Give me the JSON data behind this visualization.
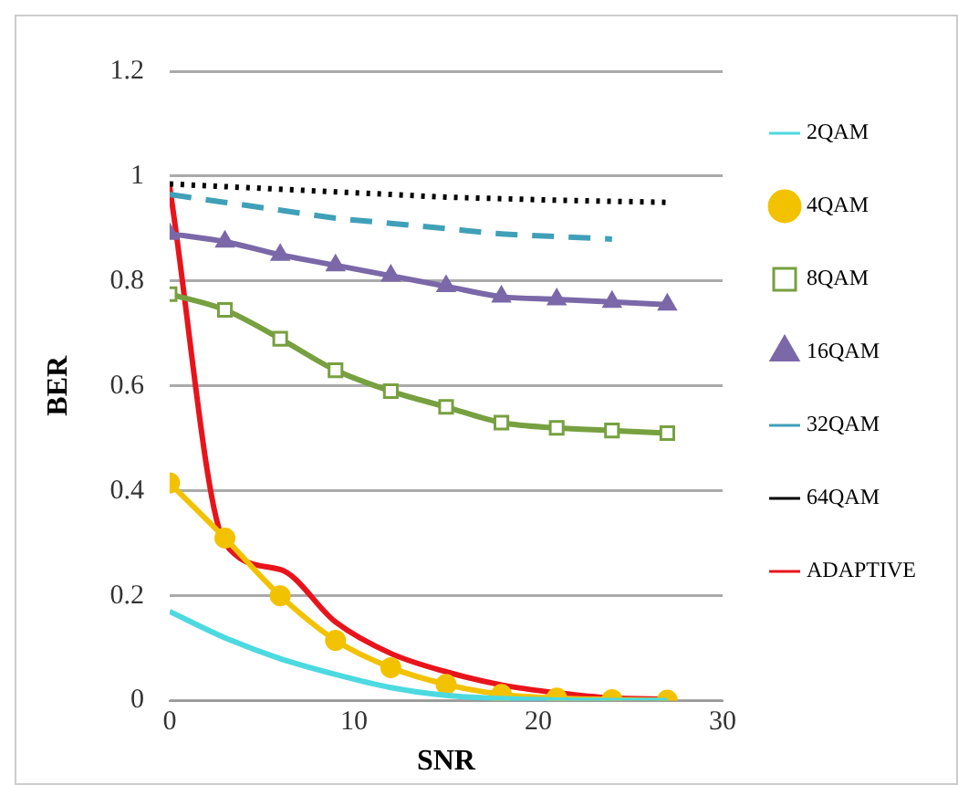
{
  "chart_data": {
    "type": "line",
    "xlabel": "SNR",
    "ylabel": "BER",
    "x": [
      0,
      3,
      6,
      9,
      12,
      15,
      18,
      21,
      24,
      27
    ],
    "xlim": [
      0,
      30
    ],
    "xticks": [
      0,
      10,
      20,
      30
    ],
    "ylim": [
      0,
      1.2
    ],
    "yticks": [
      0,
      0.2,
      0.4,
      0.6,
      0.8,
      1,
      1.2
    ],
    "grid": "y",
    "legend": "right",
    "series": [
      {
        "name": "2QAM",
        "color": "#4dd9e0",
        "marker": "none",
        "line_style": "solid",
        "values": [
          0.17,
          0.12,
          0.08,
          0.05,
          0.025,
          0.01,
          0.004,
          0.001,
          0,
          0
        ]
      },
      {
        "name": "4QAM",
        "color": "#f2c200",
        "marker": "circle",
        "line_style": "solid",
        "values": [
          0.415,
          0.31,
          0.2,
          0.115,
          0.063,
          0.031,
          0.012,
          0.005,
          0.002,
          0.001
        ]
      },
      {
        "name": "8QAM",
        "color": "#77a040",
        "marker": "square",
        "line_style": "solid",
        "values": [
          0.775,
          0.745,
          0.69,
          0.63,
          0.59,
          0.56,
          0.53,
          0.52,
          0.515,
          0.51
        ]
      },
      {
        "name": "16QAM",
        "color": "#7a68a8",
        "marker": "triangle",
        "line_style": "solid",
        "values": [
          0.89,
          0.875,
          0.85,
          0.83,
          0.81,
          0.79,
          0.77,
          0.765,
          0.76,
          0.755
        ]
      },
      {
        "name": "32QAM",
        "color": "#3fa0b8",
        "marker": "none",
        "line_style": "dashed",
        "values": [
          0.965,
          0.95,
          0.935,
          0.92,
          0.91,
          0.9,
          0.89,
          0.885,
          0.88,
          null
        ]
      },
      {
        "name": "64QAM",
        "color": "#000000",
        "marker": "none",
        "line_style": "dotted",
        "values": [
          0.985,
          0.98,
          0.975,
          0.97,
          0.965,
          0.96,
          0.957,
          0.954,
          0.952,
          0.95
        ]
      },
      {
        "name": "ADAPTIVE",
        "color": "#e8141c",
        "marker": "none",
        "line_style": "solid",
        "values": [
          0.98,
          0.3,
          0.25,
          0.15,
          0.09,
          0.055,
          0.03,
          0.015,
          0.005,
          0.003
        ]
      }
    ]
  }
}
